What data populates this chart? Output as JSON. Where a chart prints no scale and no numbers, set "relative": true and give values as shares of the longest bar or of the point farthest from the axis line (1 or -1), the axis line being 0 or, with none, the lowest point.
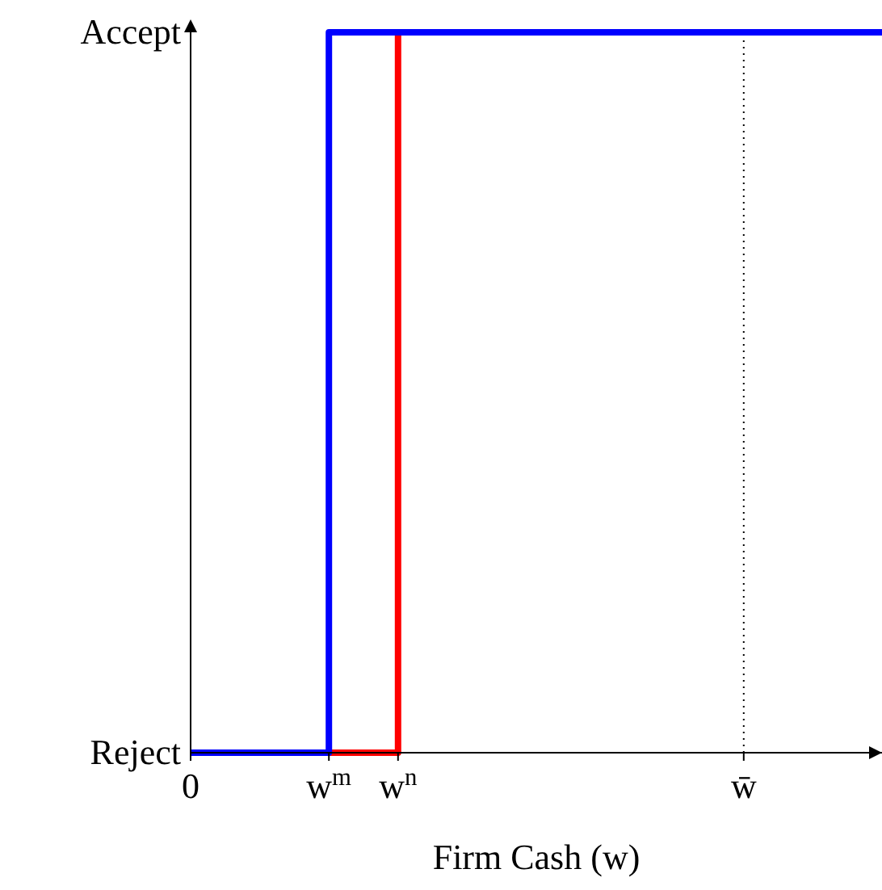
{
  "chart_data": {
    "type": "step",
    "relative": true,
    "xlabel": "Firm Cash (w)",
    "categories": [
      "0",
      null,
      null,
      null,
      "w$^{m}$",
      null,
      "w$^{n}$",
      null,
      null,
      null,
      null,
      null,
      null,
      null,
      null,
      null,
      "w̄",
      null,
      null,
      null,
      null
    ],
    "series": [
      {
        "color": "#ff0000",
        "values": [
          null,
          null,
          null,
          null,
          0,
          0,
          1,
          null,
          null,
          null,
          null,
          null,
          null,
          null,
          null,
          null,
          null,
          null,
          null,
          null,
          null
        ]
      },
      {
        "color": "#0000ff",
        "values": [
          0,
          0,
          0,
          0,
          1,
          1,
          1,
          1,
          1,
          1,
          1,
          1,
          1,
          1,
          1,
          1,
          1,
          1,
          1,
          1,
          1
        ]
      }
    ],
    "annotations": [
      "Reject",
      "Accept"
    ],
    "ref_lines": [
      {
        "axis": "x",
        "value": "w̄",
        "color": "#000000",
        "line_style": "dotted"
      }
    ]
  }
}
